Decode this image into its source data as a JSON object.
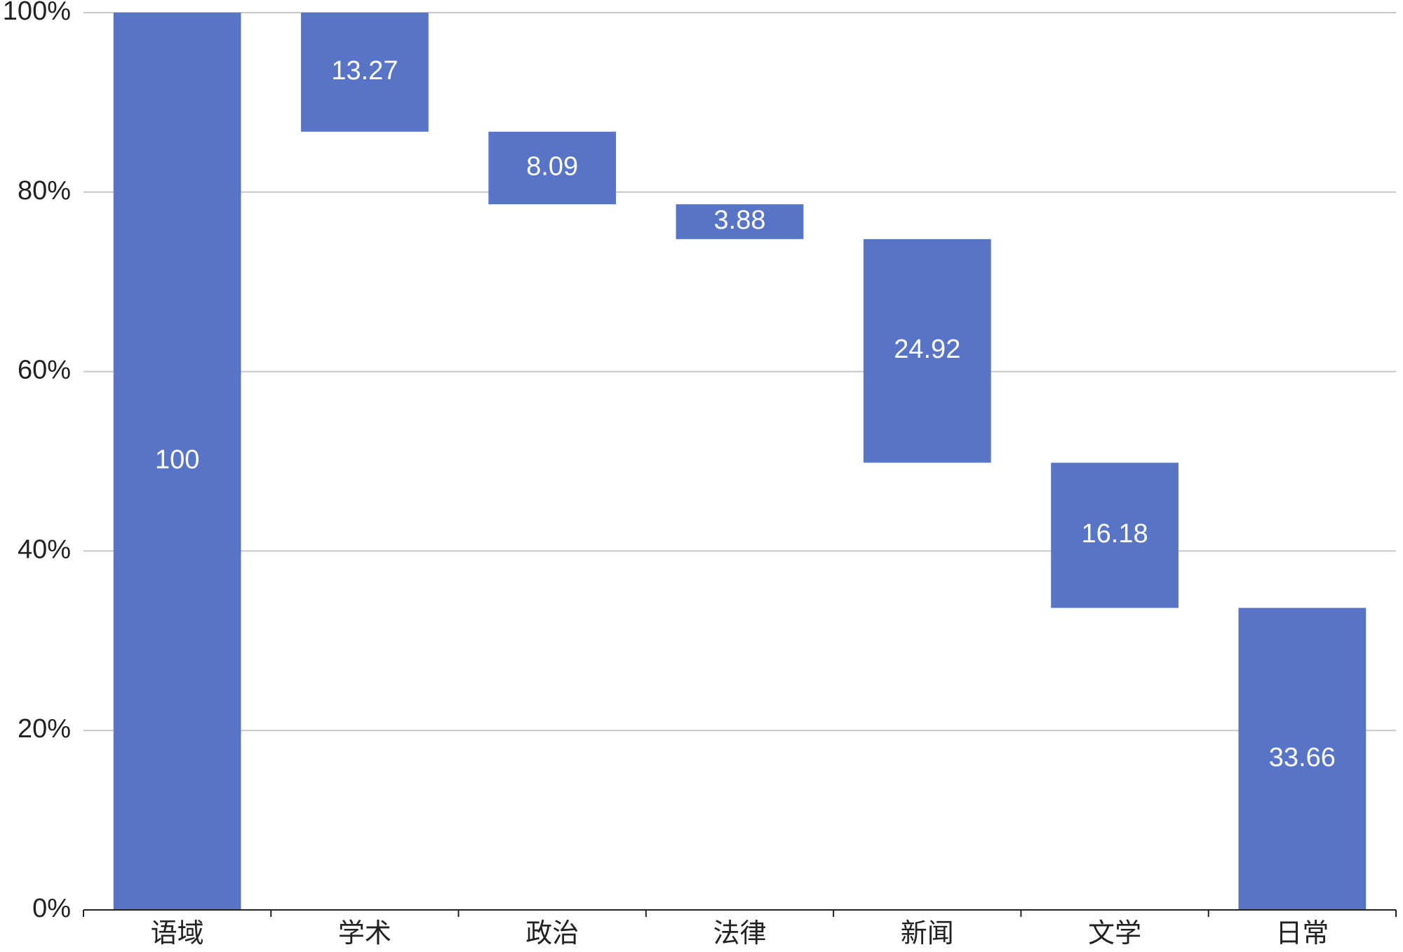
{
  "chart_data": {
    "type": "waterfall",
    "categories": [
      "语域",
      "学术",
      "政治",
      "法律",
      "新闻",
      "文学",
      "日常"
    ],
    "values": [
      100,
      13.27,
      8.09,
      3.88,
      24.92,
      16.18,
      33.66
    ],
    "color": "#5874c7",
    "ylim": [
      0,
      100
    ],
    "yticks": [
      {
        "value": 0,
        "label": "0%"
      },
      {
        "value": 20,
        "label": "20%"
      },
      {
        "value": 40,
        "label": "40%"
      },
      {
        "value": 60,
        "label": "60%"
      },
      {
        "value": 80,
        "label": "80%"
      },
      {
        "value": 100,
        "label": "100%"
      }
    ],
    "grid": true
  }
}
